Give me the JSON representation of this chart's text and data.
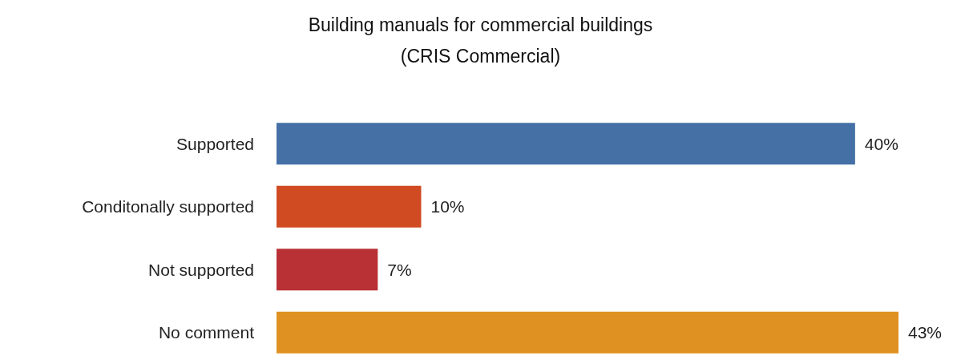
{
  "chart_data": {
    "type": "bar",
    "orientation": "horizontal",
    "title": "Building manuals for commercial buildings",
    "subtitle": "(CRIS Commercial)",
    "categories": [
      "Supported",
      "Conditonally supported",
      "Not supported",
      "No comment"
    ],
    "values": [
      40,
      10,
      7,
      43
    ],
    "colors": [
      "#4470a6",
      "#d04a22",
      "#b93035",
      "#df9221"
    ],
    "value_labels": [
      "40%",
      "10%",
      "7%",
      "43%"
    ]
  }
}
